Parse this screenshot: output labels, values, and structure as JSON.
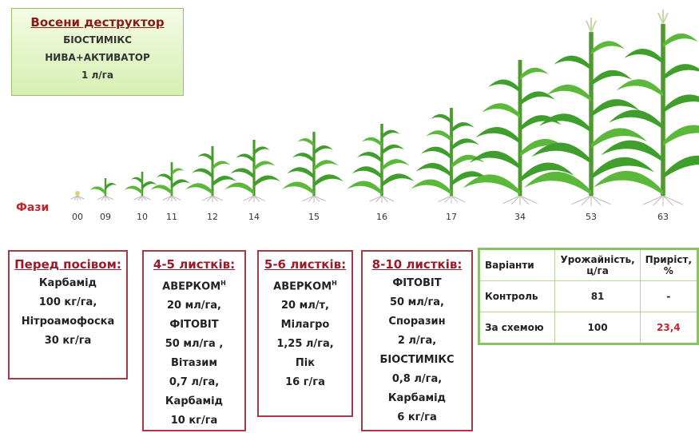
{
  "autumn": {
    "title": "Восени деструктор",
    "lines": [
      "БІОСТИМІКС",
      "НИВА+АКТИВАТОР",
      "1 л/га"
    ]
  },
  "phases": {
    "label": "Фази",
    "items": [
      "00",
      "09",
      "10",
      "11",
      "12",
      "14",
      "15",
      "16",
      "17",
      "34",
      "53",
      "63"
    ]
  },
  "boxes": [
    {
      "title": "Перед посівом:",
      "lines": [
        {
          "text": "Карбамід"
        },
        {
          "text": "100 кг/га,"
        },
        {
          "text": "Нітроамофоска"
        },
        {
          "text": "30 кг/га"
        }
      ]
    },
    {
      "title": "4-5 листків:",
      "lines": [
        {
          "text": "АВЕРКОМ",
          "sup": "Н"
        },
        {
          "text": "20 мл/га,"
        },
        {
          "text": "ФІТОВІТ"
        },
        {
          "text": "50 мл/га ,"
        },
        {
          "text": "Вітазим"
        },
        {
          "text": "0,7 л/га,"
        },
        {
          "text": "Карбамід"
        },
        {
          "text": "10 кг/га"
        }
      ]
    },
    {
      "title": "5-6 листків:",
      "lines": [
        {
          "text": "АВЕРКОМ",
          "sup": "Н"
        },
        {
          "text": "20 мл/т,"
        },
        {
          "text": "Мілагро"
        },
        {
          "text": "1,25 л/га,"
        },
        {
          "text": "Пік"
        },
        {
          "text": "16 г/га"
        }
      ]
    },
    {
      "title": "8-10 листків:",
      "lines": [
        {
          "text": "ФІТОВІТ"
        },
        {
          "text": "50 мл/га,"
        },
        {
          "text": "Споразин"
        },
        {
          "text": "2 л/га,"
        },
        {
          "text": "БІОСТИМІКС"
        },
        {
          "text": "0,8 л/га,"
        },
        {
          "text": "Карбамід"
        },
        {
          "text": "6 кг/га"
        }
      ]
    }
  ],
  "table": {
    "header": [
      "Варіанти",
      "Урожайність, ц/га",
      "Приріст, %"
    ],
    "rows": [
      [
        "Контроль",
        "81",
        "-"
      ],
      [
        "За схемою",
        "100",
        "23,4"
      ]
    ]
  }
}
